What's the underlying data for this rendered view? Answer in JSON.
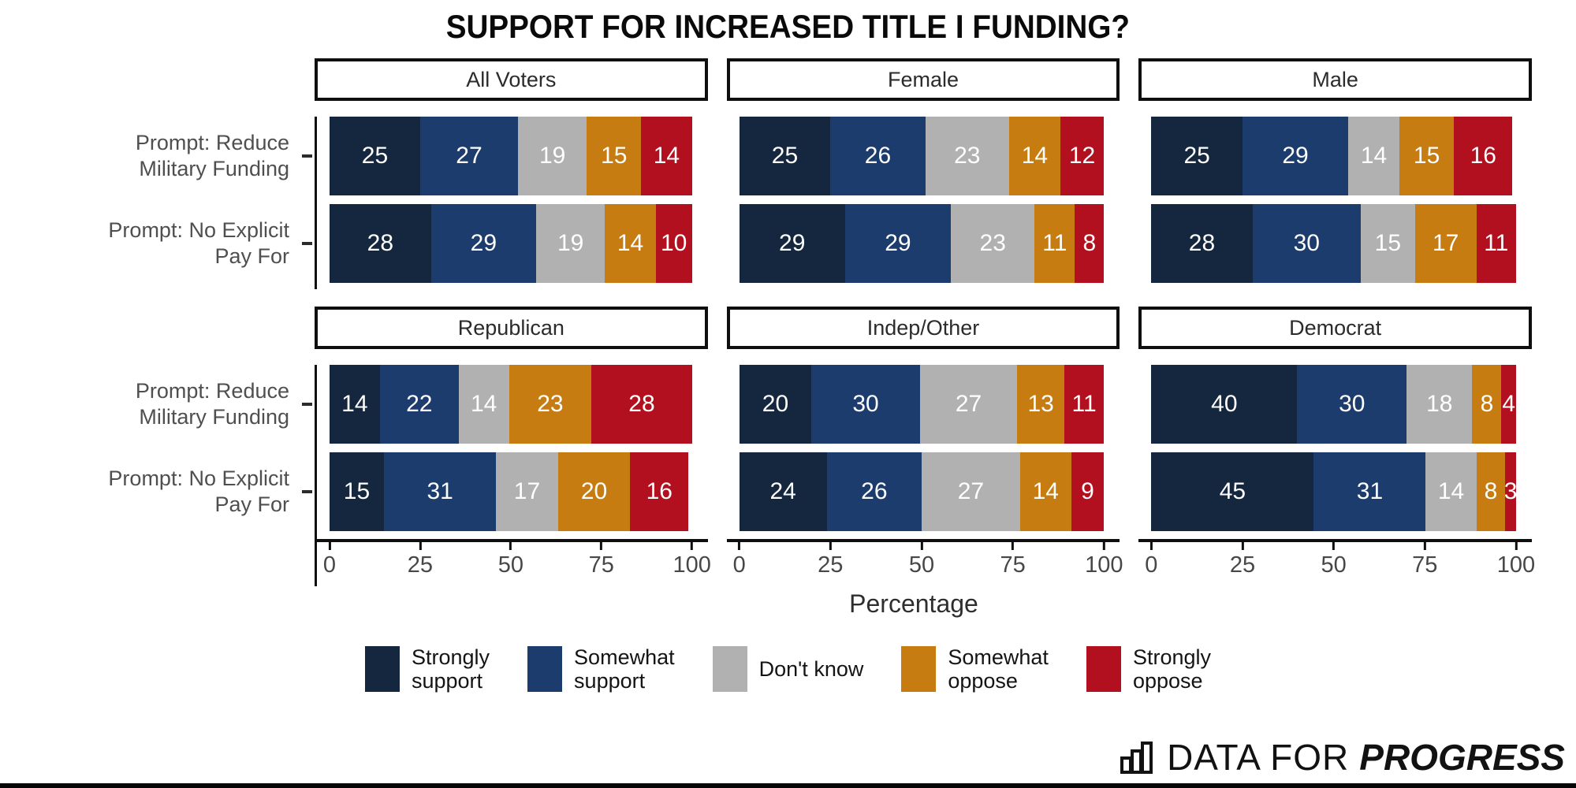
{
  "title": "SUPPORT FOR INCREASED TITLE I FUNDING?",
  "chart_data": {
    "type": "bar",
    "orientation": "horizontal",
    "stacked": true,
    "xlabel": "Percentage",
    "xlim": [
      0,
      100
    ],
    "x_ticks": [
      0,
      25,
      50,
      75,
      100
    ],
    "grid": false,
    "legend_position": "bottom",
    "row_categories": [
      [
        "Prompt: Reduce",
        "Military Funding"
      ],
      [
        "Prompt: No Explicit",
        "Pay For"
      ]
    ],
    "series": [
      {
        "name": "Strongly support",
        "color": "#14273f"
      },
      {
        "name": "Somewhat support",
        "color": "#1d3c6e"
      },
      {
        "name": "Don't know",
        "color": "#b1b1b1"
      },
      {
        "name": "Somewhat oppose",
        "color": "#c67c10"
      },
      {
        "name": "Strongly oppose",
        "color": "#b2101f"
      }
    ],
    "facets": [
      {
        "label": "All Voters",
        "values": [
          [
            25,
            27,
            19,
            15,
            14
          ],
          [
            28,
            29,
            19,
            14,
            10
          ]
        ]
      },
      {
        "label": "Female",
        "values": [
          [
            25,
            26,
            23,
            14,
            12
          ],
          [
            29,
            29,
            23,
            11,
            8
          ]
        ]
      },
      {
        "label": "Male",
        "values": [
          [
            25,
            29,
            14,
            15,
            16
          ],
          [
            28,
            30,
            15,
            17,
            11
          ]
        ]
      },
      {
        "label": "Republican",
        "values": [
          [
            14,
            22,
            14,
            23,
            28
          ],
          [
            15,
            31,
            17,
            20,
            16
          ]
        ]
      },
      {
        "label": "Indep/Other",
        "values": [
          [
            20,
            30,
            27,
            13,
            11
          ],
          [
            24,
            26,
            27,
            14,
            9
          ]
        ]
      },
      {
        "label": "Democrat",
        "values": [
          [
            40,
            30,
            18,
            8,
            4
          ],
          [
            45,
            31,
            14,
            8,
            3
          ]
        ]
      }
    ]
  },
  "legend": {
    "items": [
      {
        "lines": [
          "Strongly",
          "support"
        ],
        "color": "#14273f"
      },
      {
        "lines": [
          "Somewhat",
          "support"
        ],
        "color": "#1d3c6e"
      },
      {
        "lines": [
          "Don't know"
        ],
        "color": "#b1b1b1"
      },
      {
        "lines": [
          "Somewhat",
          "oppose"
        ],
        "color": "#c67c10"
      },
      {
        "lines": [
          "Strongly",
          "oppose"
        ],
        "color": "#b2101f"
      }
    ]
  },
  "footer": {
    "brand_light": "DATA FOR",
    "brand_bold": "PROGRESS",
    "icon": "bar-chart-icon"
  }
}
